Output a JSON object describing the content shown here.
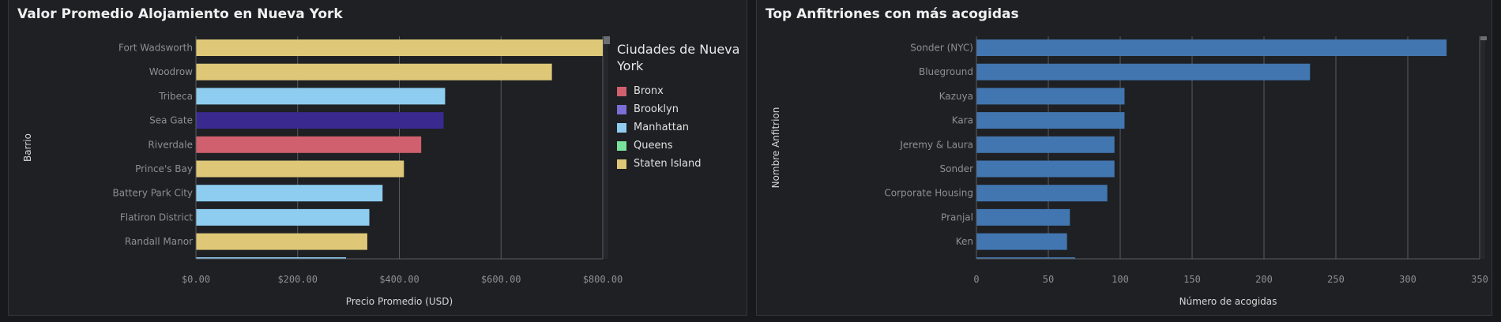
{
  "colors": {
    "Bronx": "#d0606e",
    "Brooklyn": "#3a2a8f",
    "Brooklyn_legend": "#7b6fd6",
    "Manhattan": "#8ecdf0",
    "Queens": "#79e39b",
    "Staten Island": "#dec878",
    "host_bar": "#4276b0",
    "grid": "#595c61"
  },
  "left": {
    "title": "Valor Promedio Alojamiento en Nueva York",
    "chart_data": {
      "type": "bar",
      "orientation": "horizontal",
      "title": "Valor Promedio Alojamiento en Nueva York",
      "xlabel": "Precio Promedio (USD)",
      "ylabel": "Barrio",
      "xlim": [
        0,
        800
      ],
      "xticks": [
        0,
        200,
        400,
        600,
        800
      ],
      "xtick_labels": [
        "$0.00",
        "$200.00",
        "$400.00",
        "$600.00",
        "$800.00"
      ],
      "categories": [
        "Fort Wadsworth",
        "Woodrow",
        "Tribeca",
        "Sea Gate",
        "Riverdale",
        "Prince's Bay",
        "Battery Park City",
        "Flatiron District",
        "Randall Manor"
      ],
      "values": [
        800,
        700,
        490,
        487,
        443,
        409,
        367,
        341,
        337
      ],
      "groups": [
        "Staten Island",
        "Staten Island",
        "Manhattan",
        "Brooklyn",
        "Bronx",
        "Staten Island",
        "Manhattan",
        "Manhattan",
        "Staten Island"
      ],
      "grid": true,
      "legend": {
        "title": "Ciudades de Nueva York",
        "placement": "right",
        "items": [
          "Bronx",
          "Brooklyn",
          "Manhattan",
          "Queens",
          "Staten Island"
        ]
      }
    }
  },
  "right": {
    "title": "Top Anfitriones con más acogidas",
    "chart_data": {
      "type": "bar",
      "orientation": "horizontal",
      "title": "Top Anfitriones con más acogidas",
      "xlabel": "Número de acogidas",
      "ylabel": "Nombre Anfitrion",
      "xlim": [
        0,
        350
      ],
      "xticks": [
        0,
        50,
        100,
        150,
        200,
        250,
        300,
        350
      ],
      "xtick_labels": [
        "0",
        "50",
        "100",
        "150",
        "200",
        "250",
        "300",
        "350"
      ],
      "categories": [
        "Sonder (NYC)",
        "Blueground",
        "Kazuya",
        "Kara",
        "Jeremy & Laura",
        "Sonder",
        "Corporate Housing",
        "Pranjal",
        "Ken"
      ],
      "values": [
        327,
        232,
        103,
        103,
        96,
        96,
        91,
        65,
        63
      ],
      "grid": true
    }
  }
}
